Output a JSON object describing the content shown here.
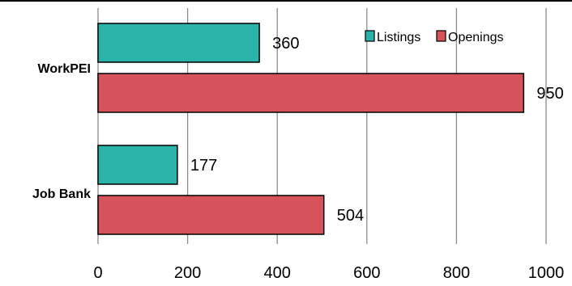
{
  "chart_data": {
    "type": "bar",
    "orientation": "horizontal",
    "categories": [
      "WorkPEI",
      "Job Bank"
    ],
    "series": [
      {
        "name": "Listings",
        "values": [
          360,
          177
        ],
        "color": "#2bb3aa"
      },
      {
        "name": "Openings",
        "values": [
          950,
          504
        ],
        "color": "#d5535a"
      }
    ],
    "xlim": [
      0,
      1000
    ],
    "xticks": [
      0,
      200,
      400,
      600,
      800,
      1000
    ],
    "xtick_labels": [
      "0",
      "200",
      "400",
      "600",
      "800",
      "1000"
    ],
    "grid": "vertical",
    "legend": "top-right",
    "title": "",
    "xlabel": "",
    "ylabel": "",
    "data_labels": true
  }
}
